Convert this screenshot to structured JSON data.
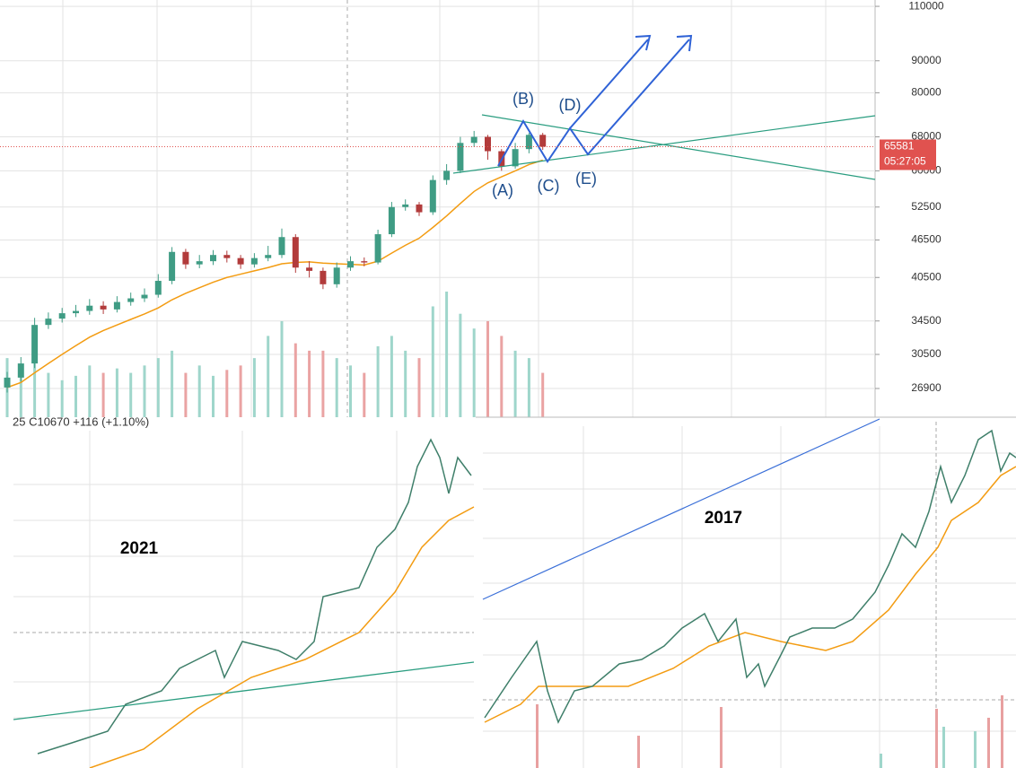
{
  "chart_data": {
    "type": "candlestick",
    "log_scale": true,
    "grid": true,
    "ylim": [
      24200,
      112600
    ],
    "yticks": [
      26900,
      30500,
      34500,
      40500,
      46500,
      52500,
      60000,
      68000,
      80000,
      90000,
      110000
    ],
    "up_color": "#3f9c84",
    "down_color": "#b23b3b",
    "ma_color": "#f39c12",
    "open": [
      27000,
      28000,
      29500,
      34000,
      34800,
      35500,
      35800,
      36500,
      36000,
      37000,
      37500,
      38000,
      40000,
      44500,
      42500,
      43000,
      44000,
      43500,
      42500,
      43500,
      44000,
      47000,
      42000,
      41500,
      39500,
      42000,
      43000,
      42800,
      47500,
      52500,
      53000,
      51500,
      58000,
      60000,
      66500,
      68000,
      64500,
      61000,
      65000,
      68500
    ],
    "close": [
      28000,
      29500,
      34000,
      34800,
      35500,
      35800,
      36500,
      36000,
      37000,
      37500,
      38000,
      40000,
      44500,
      42500,
      43000,
      44000,
      43500,
      42500,
      43500,
      44000,
      47000,
      42000,
      41500,
      39500,
      42000,
      43000,
      42800,
      47500,
      52500,
      53000,
      51500,
      58000,
      60000,
      66500,
      68000,
      64500,
      61000,
      65000,
      68500,
      65581
    ],
    "high": [
      28600,
      30200,
      34900,
      35600,
      36200,
      36600,
      37400,
      37100,
      37800,
      38300,
      38900,
      41000,
      45300,
      45000,
      44000,
      44800,
      44700,
      44000,
      44300,
      45500,
      48500,
      47500,
      43000,
      42000,
      42800,
      43800,
      43600,
      48300,
      53500,
      54000,
      53500,
      59000,
      61500,
      68000,
      69500,
      68500,
      65000,
      66500,
      69000,
      69000
    ],
    "low": [
      26500,
      27600,
      29000,
      33500,
      34300,
      35000,
      35300,
      35400,
      35600,
      36500,
      37000,
      37600,
      39500,
      41800,
      41900,
      42400,
      42800,
      41800,
      42000,
      43000,
      43500,
      41200,
      40500,
      38800,
      39000,
      41500,
      42200,
      42500,
      47000,
      51800,
      50800,
      51000,
      57000,
      59500,
      65500,
      62500,
      60000,
      60500,
      64000,
      64800
    ],
    "volume": [
      40,
      35,
      55,
      30,
      25,
      28,
      35,
      30,
      33,
      30,
      35,
      40,
      45,
      30,
      35,
      28,
      32,
      35,
      40,
      55,
      65,
      50,
      45,
      45,
      40,
      35,
      30,
      48,
      55,
      45,
      40,
      75,
      85,
      70,
      60,
      65,
      55,
      45,
      40,
      30
    ],
    "ma": [
      27000,
      27500,
      28500,
      29500,
      30500,
      31500,
      32500,
      33300,
      34000,
      34700,
      35400,
      36200,
      37300,
      38200,
      39000,
      39800,
      40500,
      41000,
      41500,
      42000,
      42600,
      42800,
      42900,
      42700,
      42600,
      42500,
      42400,
      43000,
      44300,
      45600,
      46800,
      48700,
      50800,
      53200,
      55600,
      57400,
      58700,
      60000,
      61400,
      62400
    ],
    "last_price": 65581,
    "countdown": "05:27:05",
    "annotations": [
      "(A)",
      "(B)",
      "(C)",
      "(D)",
      "(E)"
    ]
  },
  "lower_left": {
    "info": "25  C10670  +116 (+1.10%)",
    "label": "2021"
  },
  "lower_right": {
    "label": "2017"
  }
}
